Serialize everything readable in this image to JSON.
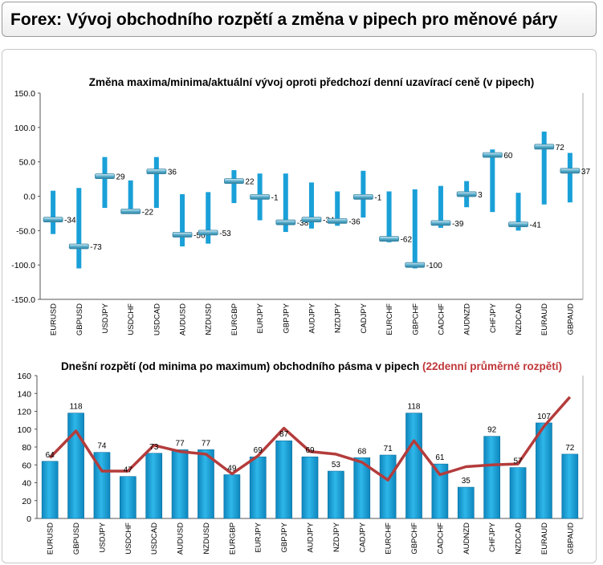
{
  "page_title": "Forex: Vývoj obchodního rozpětí a změna v pipech pro měnové páry",
  "colors": {
    "bar_fill": "#1aa0d8",
    "bar_dark": "#0d7fb4",
    "marker": "#4a9fbf",
    "average_line": "#b43c3c",
    "title_highlight": "#c0373a"
  },
  "chart_data": [
    {
      "type": "range",
      "title": "Změna maxima/minima/aktuální vývoj oproti předchozí denní uzavírací ceně (v pipech)",
      "categories": [
        "EURUSD",
        "GBPUSD",
        "USDJPY",
        "USDCHF",
        "USDCAD",
        "AUDUSD",
        "NZDUSD",
        "EURGBP",
        "EURJPY",
        "GBPJPY",
        "AUDJPY",
        "NZDJPY",
        "CADJPY",
        "EURCHF",
        "GBPCHF",
        "CADCHF",
        "AUDNZD",
        "CHFJPY",
        "NZDCAD",
        "EURAUD",
        "GBPAUD"
      ],
      "high": [
        8,
        12,
        57,
        23,
        57,
        3,
        6,
        38,
        33,
        33,
        20,
        7,
        37,
        7,
        10,
        15,
        22,
        68,
        5,
        94,
        63
      ],
      "low": [
        -55,
        -105,
        -17,
        -23,
        -17,
        -73,
        -69,
        -10,
        -35,
        -52,
        -47,
        -43,
        -31,
        -67,
        -105,
        -46,
        -16,
        -23,
        -50,
        -12,
        -9
      ],
      "current": [
        -34,
        -73,
        29,
        -22,
        36,
        -56,
        -53,
        22,
        -1,
        -38,
        -34,
        -36,
        -1,
        -62,
        -100,
        -39,
        3,
        60,
        -41,
        72,
        37
      ],
      "labels": [
        "-34",
        "-73",
        "29",
        "-22",
        "36",
        "-56",
        "-53",
        "22",
        "-1",
        "-38",
        "-34",
        "-36",
        "-1",
        "-62",
        "-100",
        "-39",
        "3",
        "60",
        "-41",
        "72",
        "37"
      ],
      "yticks": [
        "150.0",
        "100.0",
        "50.0",
        "0.0",
        "-50.0",
        "-100.0",
        "-150.0"
      ],
      "ylim": [
        -150,
        150
      ]
    },
    {
      "type": "bar",
      "title": "Dnešní rozpětí (od minima po maximum) obchodního pásma v pipech",
      "title_highlight": "(22denní průměrné rozpětí)",
      "categories": [
        "EURUSD",
        "GBPUSD",
        "USDJPY",
        "USDCHF",
        "USDCAD",
        "AUDUSD",
        "NZDUSD",
        "EURGBP",
        "EURJPY",
        "GBPJPY",
        "AUDJPY",
        "NZDJPY",
        "CADJPY",
        "EURCHF",
        "GBPCHF",
        "CADCHF",
        "AUDNZD",
        "CHFJPY",
        "NZDCAD",
        "EURAUD",
        "GBPAUD"
      ],
      "values": [
        64,
        118,
        74,
        47,
        73,
        77,
        77,
        49,
        69,
        87,
        69,
        53,
        68,
        71,
        118,
        61,
        35,
        92,
        57,
        107,
        72
      ],
      "labels": [
        "64",
        "118",
        "74",
        "47",
        "73",
        "77",
        "77",
        "49",
        "69",
        "87",
        "69",
        "53",
        "68",
        "71",
        "118",
        "61",
        "35",
        "92",
        "57",
        "107",
        "72"
      ],
      "average": [
        68,
        98,
        53,
        53,
        82,
        75,
        72,
        50,
        70,
        101,
        75,
        72,
        63,
        43,
        87,
        49,
        58,
        60,
        61,
        103,
        136
      ],
      "yticks": [
        "0",
        "20",
        "40",
        "60",
        "80",
        "100",
        "120",
        "140",
        "160"
      ],
      "ylim": [
        0,
        160
      ]
    }
  ]
}
